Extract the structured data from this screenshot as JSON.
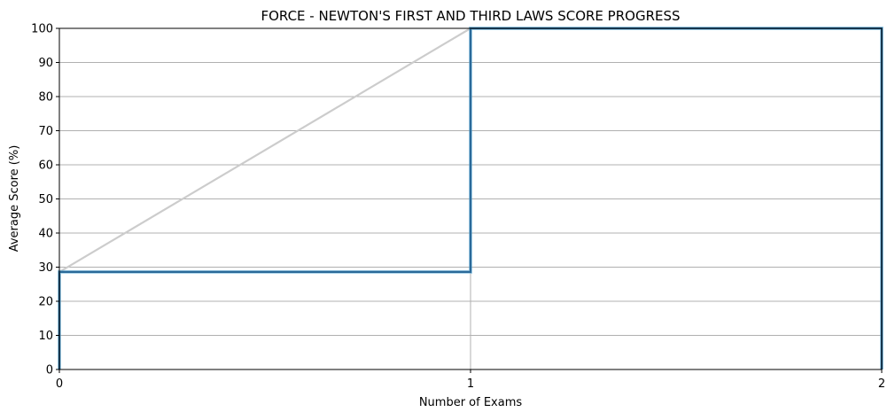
{
  "chart_data": {
    "type": "line",
    "title": "FORCE - NEWTON'S FIRST AND THIRD LAWS SCORE PROGRESS",
    "xlabel": "Number of Exams",
    "ylabel": "Average Score (%)",
    "xlim": [
      0,
      2
    ],
    "ylim": [
      0,
      100
    ],
    "xticks": [
      0,
      1,
      2
    ],
    "yticks": [
      0,
      10,
      20,
      30,
      40,
      50,
      60,
      70,
      80,
      90,
      100
    ],
    "grid": true,
    "legend": "none",
    "series": [
      {
        "style": "steps-post",
        "color": "#2b6a99",
        "points": [
          {
            "x": 0,
            "y": 0
          },
          {
            "x": 0,
            "y": 28.6
          },
          {
            "x": 1,
            "y": 28.6
          },
          {
            "x": 1,
            "y": 100
          },
          {
            "x": 2,
            "y": 100
          },
          {
            "x": 2,
            "y": 0
          }
        ]
      },
      {
        "style": "line",
        "color": "#cccccc",
        "points": [
          {
            "x": 0,
            "y": 28.6
          },
          {
            "x": 1,
            "y": 100
          }
        ]
      }
    ]
  }
}
